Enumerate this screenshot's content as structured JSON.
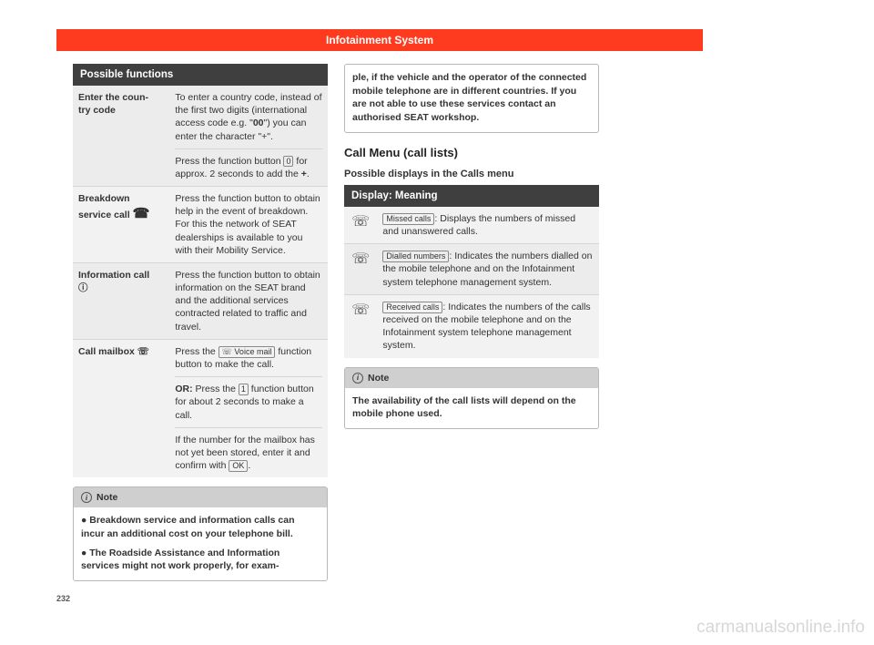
{
  "header": "Infotainment System",
  "pageNumber": "232",
  "watermark": "carmanualsonline.info",
  "left": {
    "tableHeader": "Possible functions",
    "rows": [
      {
        "label": "Enter the coun-\ntry code",
        "bg": "bg-gray",
        "paras": [
          "To enter a country code, instead of the first two digits (international access code e.g. \"<b>00</b>\") you can enter the character \"+\".",
          "Press the function button <span class='keycap'>0</span> for approx. 2 seconds to add the <b>+</b>."
        ]
      },
      {
        "label": "Breakdown\nservice call <span class='phone-icon'>&#9742;</span>",
        "bg": "bg-light",
        "paras": [
          "Press the function button to obtain help in the event of breakdown. For this the network of SEAT dealerships is available to you with their Mobility Service."
        ]
      },
      {
        "label": "Information call\n&#9432;",
        "bg": "bg-gray",
        "paras": [
          "Press the function button to obtain information on the SEAT brand and the additional services contracted related to traffic and travel."
        ]
      },
      {
        "label": "Call mailbox &#9743;",
        "bg": "bg-light",
        "paras": [
          "Press the <span class='pill'>&#9743; Voice mail</span> function button to make the call.",
          "<b>OR:</b> Press the <span class='keycap'>1</span> function button for about 2 seconds to make a call.",
          "If the number for the mailbox has not yet been stored, enter it and confirm with <span class='pill'>OK</span>."
        ]
      }
    ],
    "note": {
      "title": "Note",
      "paras": [
        "&#9679; Breakdown service and information calls can incur an additional cost on your telephone bill.",
        "&#9679; The Roadside Assistance and Information services might not work properly, for exam-"
      ]
    }
  },
  "right": {
    "continuation": "ple, if the vehicle and the operator of the connected mobile telephone are in different countries. If you are not able to use these services contact an authorised SEAT workshop.",
    "sectionTitle": "Call Menu (call lists)",
    "sectionSub": "Possible displays in the Calls menu",
    "dispHeader": "Display: Meaning",
    "dispRows": [
      {
        "icon": "&#9743;",
        "bg": "bg-light",
        "pill": "Missed calls",
        "text": ": Displays the numbers of missed and unanswered calls."
      },
      {
        "icon": "&#9743;",
        "bg": "bg-gray",
        "pill": "Dialled numbers",
        "text": ": Indicates the numbers dialled on the mobile telephone and on the Infotainment system telephone management system."
      },
      {
        "icon": "&#9743;",
        "bg": "bg-light",
        "pill": "Received calls",
        "text": ": Indicates the numbers of the calls received on the mobile telephone and on the Infotainment system telephone management system."
      }
    ],
    "note": {
      "title": "Note",
      "paras": [
        "The availability of the call lists will depend on the mobile phone used."
      ]
    }
  }
}
